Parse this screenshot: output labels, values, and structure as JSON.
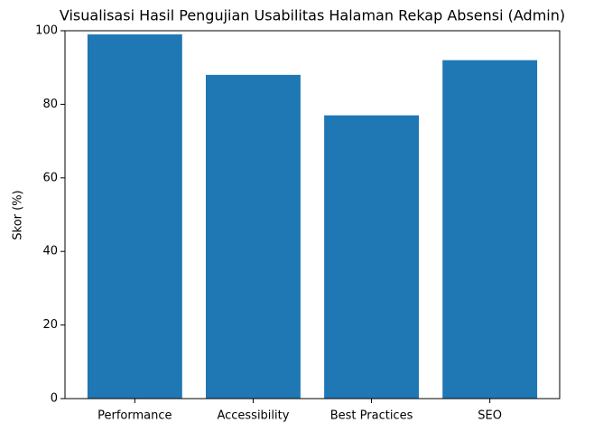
{
  "chart_data": {
    "type": "bar",
    "title": "Visualisasi Hasil Pengujian Usabilitas Halaman Rekap Absensi (Admin)",
    "y_label": "Skor (%)",
    "categories": [
      "Performance",
      "Accessibility",
      "Best Practices",
      "SEO"
    ],
    "values": [
      99,
      88,
      77,
      92
    ],
    "color": "#1f77b4",
    "ylim": [
      0,
      100
    ],
    "yticks": [
      0,
      20,
      40,
      60,
      80,
      100
    ],
    "grid": false
  }
}
